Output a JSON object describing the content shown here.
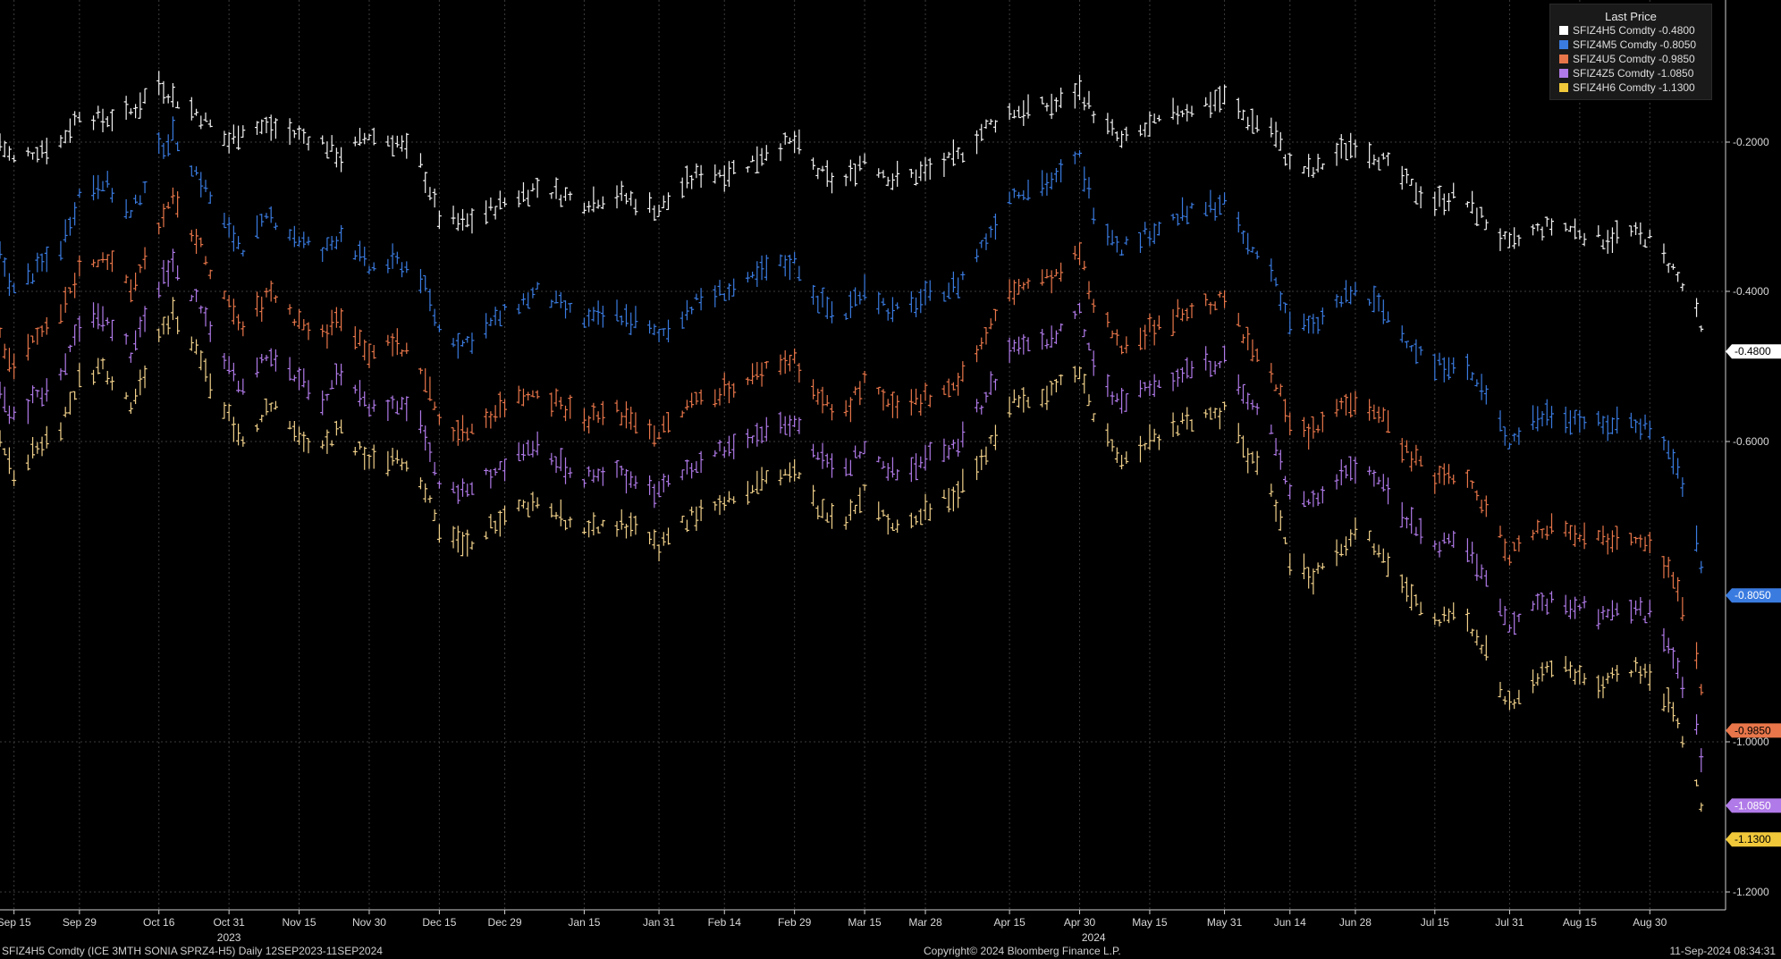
{
  "chart_data": {
    "type": "line",
    "chart_style": "ohlc-bars",
    "x": [
      "2023-09-12",
      "2023-09-15",
      "2023-09-20",
      "2023-09-25",
      "2023-09-29",
      "2023-10-04",
      "2023-10-10",
      "2023-10-16",
      "2023-10-19",
      "2023-10-24",
      "2023-10-31",
      "2023-11-03",
      "2023-11-09",
      "2023-11-15",
      "2023-11-20",
      "2023-11-24",
      "2023-11-30",
      "2023-12-06",
      "2023-12-11",
      "2023-12-15",
      "2023-12-20",
      "2023-12-29",
      "2024-01-05",
      "2024-01-10",
      "2024-01-15",
      "2024-01-22",
      "2024-01-26",
      "2024-01-31",
      "2024-02-05",
      "2024-02-09",
      "2024-02-14",
      "2024-02-19",
      "2024-02-23",
      "2024-02-29",
      "2024-03-05",
      "2024-03-10",
      "2024-03-15",
      "2024-03-21",
      "2024-03-28",
      "2024-04-04",
      "2024-04-10",
      "2024-04-15",
      "2024-04-19",
      "2024-04-25",
      "2024-04-30",
      "2024-05-03",
      "2024-05-09",
      "2024-05-15",
      "2024-05-21",
      "2024-05-26",
      "2024-05-31",
      "2024-06-05",
      "2024-06-10",
      "2024-06-14",
      "2024-06-19",
      "2024-06-23",
      "2024-06-28",
      "2024-07-03",
      "2024-07-10",
      "2024-07-15",
      "2024-07-20",
      "2024-07-25",
      "2024-07-31",
      "2024-08-05",
      "2024-08-10",
      "2024-08-15",
      "2024-08-20",
      "2024-08-25",
      "2024-08-30",
      "2024-09-04",
      "2024-09-09",
      "2024-09-11"
    ],
    "series": [
      {
        "name": "SFIZ4H5 Comdty",
        "color": "#f2f2f2",
        "values": [
          -0.2,
          -0.225,
          -0.21,
          -0.2,
          -0.16,
          -0.17,
          -0.16,
          -0.12,
          -0.14,
          -0.16,
          -0.2,
          -0.18,
          -0.18,
          -0.19,
          -0.2,
          -0.22,
          -0.19,
          -0.2,
          -0.23,
          -0.3,
          -0.31,
          -0.28,
          -0.26,
          -0.27,
          -0.28,
          -0.27,
          -0.28,
          -0.29,
          -0.26,
          -0.24,
          -0.24,
          -0.23,
          -0.21,
          -0.2,
          -0.24,
          -0.26,
          -0.22,
          -0.25,
          -0.24,
          -0.22,
          -0.18,
          -0.16,
          -0.155,
          -0.15,
          -0.13,
          -0.16,
          -0.2,
          -0.18,
          -0.16,
          -0.15,
          -0.14,
          -0.17,
          -0.18,
          -0.23,
          -0.24,
          -0.22,
          -0.2,
          -0.22,
          -0.26,
          -0.28,
          -0.27,
          -0.3,
          -0.34,
          -0.32,
          -0.31,
          -0.32,
          -0.33,
          -0.32,
          -0.33,
          -0.37,
          -0.43,
          -0.48
        ]
      },
      {
        "name": "SFIZ4M5 Comdty",
        "color": "#3a7be0",
        "values": [
          -0.35,
          -0.4,
          -0.37,
          -0.34,
          -0.27,
          -0.25,
          -0.3,
          -0.21,
          -0.19,
          -0.24,
          -0.32,
          -0.34,
          -0.3,
          -0.33,
          -0.35,
          -0.32,
          -0.37,
          -0.36,
          -0.38,
          -0.45,
          -0.47,
          -0.43,
          -0.4,
          -0.42,
          -0.44,
          -0.43,
          -0.44,
          -0.46,
          -0.43,
          -0.41,
          -0.4,
          -0.39,
          -0.37,
          -0.36,
          -0.41,
          -0.44,
          -0.39,
          -0.43,
          -0.41,
          -0.39,
          -0.33,
          -0.27,
          -0.26,
          -0.25,
          -0.22,
          -0.29,
          -0.34,
          -0.32,
          -0.3,
          -0.29,
          -0.28,
          -0.34,
          -0.37,
          -0.44,
          -0.45,
          -0.42,
          -0.4,
          -0.42,
          -0.47,
          -0.5,
          -0.49,
          -0.53,
          -0.6,
          -0.57,
          -0.56,
          -0.57,
          -0.58,
          -0.57,
          -0.58,
          -0.62,
          -0.73,
          -0.805
        ]
      },
      {
        "name": "SFIZ4U5 Comdty",
        "color": "#e8764a",
        "values": [
          -0.46,
          -0.5,
          -0.46,
          -0.43,
          -0.37,
          -0.35,
          -0.4,
          -0.31,
          -0.28,
          -0.33,
          -0.42,
          -0.45,
          -0.4,
          -0.44,
          -0.46,
          -0.43,
          -0.48,
          -0.47,
          -0.5,
          -0.57,
          -0.59,
          -0.55,
          -0.53,
          -0.55,
          -0.57,
          -0.56,
          -0.57,
          -0.59,
          -0.56,
          -0.54,
          -0.53,
          -0.52,
          -0.5,
          -0.49,
          -0.54,
          -0.57,
          -0.52,
          -0.56,
          -0.54,
          -0.52,
          -0.46,
          -0.4,
          -0.39,
          -0.38,
          -0.35,
          -0.42,
          -0.47,
          -0.45,
          -0.43,
          -0.42,
          -0.41,
          -0.47,
          -0.5,
          -0.58,
          -0.59,
          -0.56,
          -0.54,
          -0.56,
          -0.62,
          -0.65,
          -0.64,
          -0.68,
          -0.75,
          -0.72,
          -0.71,
          -0.72,
          -0.73,
          -0.72,
          -0.73,
          -0.78,
          -0.89,
          -0.985
        ]
      },
      {
        "name": "SFIZ4Z5 Comdty",
        "color": "#b07ae8",
        "values": [
          -0.53,
          -0.57,
          -0.54,
          -0.51,
          -0.45,
          -0.43,
          -0.48,
          -0.39,
          -0.36,
          -0.41,
          -0.5,
          -0.53,
          -0.48,
          -0.52,
          -0.54,
          -0.51,
          -0.56,
          -0.55,
          -0.58,
          -0.65,
          -0.67,
          -0.63,
          -0.61,
          -0.63,
          -0.65,
          -0.64,
          -0.65,
          -0.67,
          -0.64,
          -0.62,
          -0.61,
          -0.6,
          -0.58,
          -0.57,
          -0.62,
          -0.65,
          -0.6,
          -0.64,
          -0.62,
          -0.6,
          -0.54,
          -0.48,
          -0.47,
          -0.46,
          -0.43,
          -0.5,
          -0.55,
          -0.53,
          -0.51,
          -0.5,
          -0.49,
          -0.55,
          -0.58,
          -0.67,
          -0.68,
          -0.65,
          -0.63,
          -0.65,
          -0.71,
          -0.74,
          -0.73,
          -0.77,
          -0.85,
          -0.82,
          -0.81,
          -0.82,
          -0.83,
          -0.82,
          -0.83,
          -0.88,
          -0.98,
          -1.085
        ]
      },
      {
        "name": "SFIZ4H6 Comdty",
        "color": "#f0d08a",
        "values": [
          -0.6,
          -0.64,
          -0.61,
          -0.58,
          -0.52,
          -0.5,
          -0.55,
          -0.46,
          -0.43,
          -0.48,
          -0.57,
          -0.6,
          -0.55,
          -0.59,
          -0.61,
          -0.58,
          -0.63,
          -0.62,
          -0.65,
          -0.72,
          -0.74,
          -0.7,
          -0.68,
          -0.7,
          -0.72,
          -0.71,
          -0.72,
          -0.74,
          -0.71,
          -0.69,
          -0.68,
          -0.67,
          -0.65,
          -0.64,
          -0.69,
          -0.72,
          -0.67,
          -0.71,
          -0.69,
          -0.67,
          -0.61,
          -0.55,
          -0.54,
          -0.53,
          -0.5,
          -0.57,
          -0.62,
          -0.6,
          -0.58,
          -0.57,
          -0.56,
          -0.62,
          -0.66,
          -0.76,
          -0.78,
          -0.75,
          -0.72,
          -0.74,
          -0.8,
          -0.84,
          -0.83,
          -0.87,
          -0.95,
          -0.92,
          -0.9,
          -0.91,
          -0.92,
          -0.9,
          -0.91,
          -0.96,
          -1.05,
          -1.13
        ]
      }
    ],
    "ylim": [
      -1.21,
      0.0
    ],
    "y_ticks": [
      "-0.2000",
      "-0.4000",
      "-0.6000",
      "-1.0000",
      "-1.2000"
    ],
    "x_tick_labels": [
      {
        "date": "2023-09-15",
        "label": "Sep 15"
      },
      {
        "date": "2023-09-29",
        "label": "Sep 29"
      },
      {
        "date": "2023-10-16",
        "label": "Oct 16"
      },
      {
        "date": "2023-10-31",
        "label": "Oct 31"
      },
      {
        "date": "2023-11-15",
        "label": "Nov 15"
      },
      {
        "date": "2023-11-30",
        "label": "Nov 30"
      },
      {
        "date": "2023-12-15",
        "label": "Dec 15"
      },
      {
        "date": "2023-12-29",
        "label": "Dec 29"
      },
      {
        "date": "2024-01-15",
        "label": "Jan 15"
      },
      {
        "date": "2024-01-31",
        "label": "Jan 31"
      },
      {
        "date": "2024-02-14",
        "label": "Feb 14"
      },
      {
        "date": "2024-02-29",
        "label": "Feb 29"
      },
      {
        "date": "2024-03-15",
        "label": "Mar 15"
      },
      {
        "date": "2024-03-28",
        "label": "Mar 28"
      },
      {
        "date": "2024-04-15",
        "label": "Apr 15"
      },
      {
        "date": "2024-04-30",
        "label": "Apr 30"
      },
      {
        "date": "2024-05-15",
        "label": "May 15"
      },
      {
        "date": "2024-05-31",
        "label": "May 31"
      },
      {
        "date": "2024-06-14",
        "label": "Jun 14"
      },
      {
        "date": "2024-06-28",
        "label": "Jun 28"
      },
      {
        "date": "2024-07-15",
        "label": "Jul 15"
      },
      {
        "date": "2024-07-31",
        "label": "Jul 31"
      },
      {
        "date": "2024-08-15",
        "label": "Aug 15"
      },
      {
        "date": "2024-08-30",
        "label": "Aug 30"
      }
    ],
    "year_labels": [
      {
        "date": "2023-10-31",
        "label": "2023"
      },
      {
        "date": "2024-05-03",
        "label": "2024"
      }
    ],
    "last_price_tags": [
      {
        "label": "-0.4800",
        "value": -0.48,
        "color": "#ffffff",
        "text_color": "#000000"
      },
      {
        "label": "-0.8050",
        "value": -0.805,
        "color": "#3a7be0",
        "text_color": "#ffffff"
      },
      {
        "label": "-0.9850",
        "value": -0.985,
        "color": "#e8764a",
        "text_color": "#000000"
      },
      {
        "label": "-1.0850",
        "value": -1.085,
        "color": "#b07ae8",
        "text_color": "#ffffff"
      },
      {
        "label": "-1.1300",
        "value": -1.13,
        "color": "#f0c83a",
        "text_color": "#000000"
      }
    ],
    "legend": {
      "title": "Last Price",
      "placement": "top-right",
      "entries": [
        {
          "text": "SFIZ4H5 Comdty  -0.4800",
          "color": "#ffffff"
        },
        {
          "text": "SFIZ4M5 Comdty  -0.8050",
          "color": "#3a7be0"
        },
        {
          "text": "SFIZ4U5 Comdty  -0.9850",
          "color": "#e8764a"
        },
        {
          "text": "SFIZ4Z5 Comdty  -1.0850",
          "color": "#b07ae8"
        },
        {
          "text": "SFIZ4H6 Comdty  -1.1300",
          "color": "#f0c83a"
        }
      ]
    },
    "grid": true
  },
  "footer": {
    "left": "SFIZ4H5 Comdty (ICE 3MTH SONIA SPRZ4-H5)  Daily 12SEP2023-11SEP2024",
    "center": "Copyright© 2024 Bloomberg Finance L.P.",
    "right": "11-Sep-2024 08:34:31"
  }
}
